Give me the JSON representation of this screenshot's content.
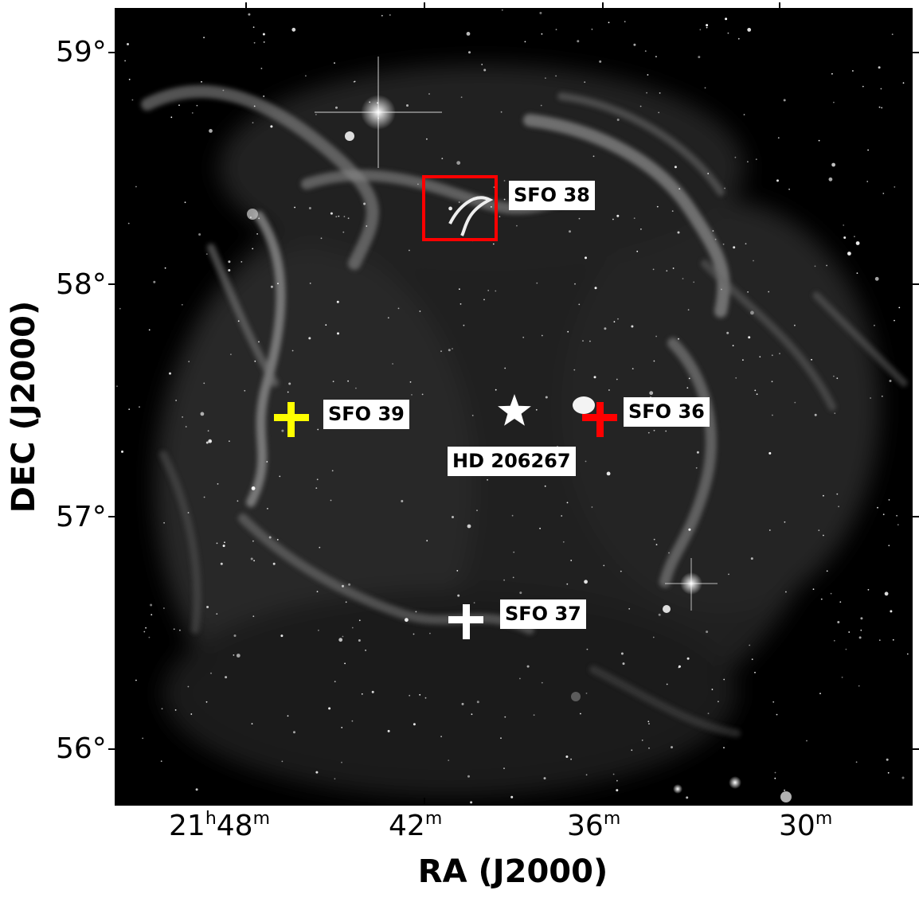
{
  "axes": {
    "xlabel": "RA (J2000)",
    "ylabel": "DEC (J2000)",
    "xticks": [
      {
        "h": "21",
        "hu": "h",
        "m": "48",
        "mu": "m"
      },
      {
        "h": "",
        "hu": "",
        "m": "42",
        "mu": "m"
      },
      {
        "h": "",
        "hu": "",
        "m": "36",
        "mu": "m"
      },
      {
        "h": "",
        "hu": "",
        "m": "30",
        "mu": "m"
      }
    ],
    "yticks": [
      "59°",
      "58°",
      "57°",
      "56°"
    ]
  },
  "annotations": {
    "sfo38": "SFO 38",
    "sfo39": "SFO 39",
    "sfo36": "SFO 36",
    "sfo37": "SFO 37",
    "hd": "HD 206267"
  },
  "marker_colors": {
    "sfo39": "#ffff00",
    "sfo36": "#ff0000",
    "sfo37": "#ffffff",
    "sfo38_box": "#ff0000",
    "hd_star": "#ffffff"
  }
}
